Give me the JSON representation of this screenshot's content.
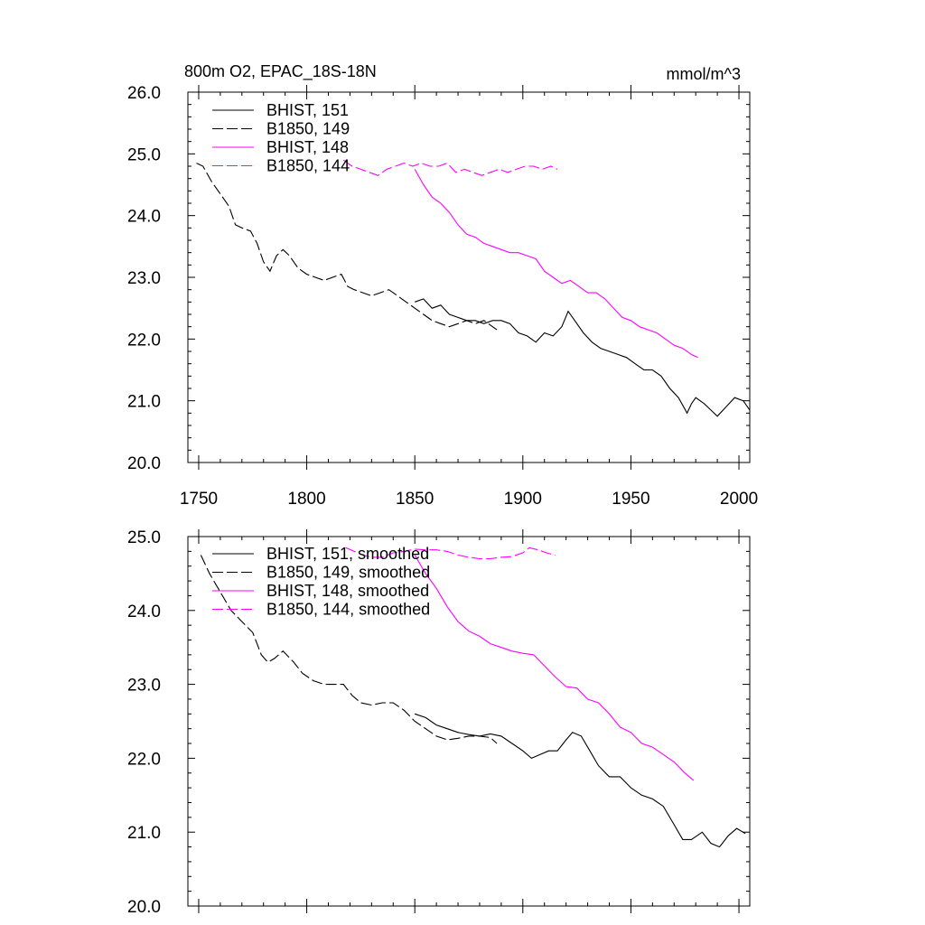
{
  "chart_data": [
    {
      "type": "line",
      "title": "800m O2, EPAC_18S-18N",
      "units": "mmol/m^3",
      "xlim": [
        1745,
        2005
      ],
      "ylim": [
        20.0,
        26.0
      ],
      "x_ticks": [
        "1750",
        "1800",
        "1850",
        "1900",
        "1950",
        "2000"
      ],
      "y_ticks": [
        "20.0",
        "21.0",
        "22.0",
        "23.0",
        "24.0",
        "25.0",
        "26.0"
      ],
      "legend": "top-left",
      "series": [
        {
          "name": "BHIST, 151",
          "color": "#000000",
          "dash": "solid",
          "points": [
            [
              1850,
              22.6
            ],
            [
              1854,
              22.65
            ],
            [
              1858,
              22.5
            ],
            [
              1862,
              22.55
            ],
            [
              1866,
              22.4
            ],
            [
              1870,
              22.35
            ],
            [
              1874,
              22.3
            ],
            [
              1878,
              22.3
            ],
            [
              1882,
              22.25
            ],
            [
              1886,
              22.3
            ],
            [
              1890,
              22.3
            ],
            [
              1894,
              22.25
            ],
            [
              1898,
              22.1
            ],
            [
              1902,
              22.05
            ],
            [
              1906,
              21.95
            ],
            [
              1910,
              22.1
            ],
            [
              1914,
              22.05
            ],
            [
              1918,
              22.2
            ],
            [
              1921,
              22.45
            ],
            [
              1924,
              22.3
            ],
            [
              1928,
              22.1
            ],
            [
              1932,
              21.95
            ],
            [
              1936,
              21.85
            ],
            [
              1940,
              21.8
            ],
            [
              1944,
              21.75
            ],
            [
              1948,
              21.7
            ],
            [
              1952,
              21.6
            ],
            [
              1956,
              21.5
            ],
            [
              1960,
              21.5
            ],
            [
              1964,
              21.4
            ],
            [
              1968,
              21.2
            ],
            [
              1972,
              21.05
            ],
            [
              1976,
              20.8
            ],
            [
              1978,
              20.95
            ],
            [
              1980,
              21.05
            ],
            [
              1984,
              20.95
            ],
            [
              1987,
              20.85
            ],
            [
              1990,
              20.75
            ],
            [
              1994,
              20.9
            ],
            [
              1998,
              21.05
            ],
            [
              2002,
              21.0
            ],
            [
              2005,
              20.85
            ]
          ]
        },
        {
          "name": "B1850, 149",
          "color": "#000000",
          "dash": "dashed",
          "points": [
            [
              1749,
              24.85
            ],
            [
              1752,
              24.8
            ],
            [
              1756,
              24.55
            ],
            [
              1760,
              24.35
            ],
            [
              1764,
              24.15
            ],
            [
              1767,
              23.85
            ],
            [
              1770,
              23.8
            ],
            [
              1774,
              23.75
            ],
            [
              1777,
              23.55
            ],
            [
              1780,
              23.25
            ],
            [
              1783,
              23.1
            ],
            [
              1786,
              23.35
            ],
            [
              1789,
              23.45
            ],
            [
              1792,
              23.35
            ],
            [
              1796,
              23.15
            ],
            [
              1800,
              23.05
            ],
            [
              1804,
              23.0
            ],
            [
              1808,
              22.95
            ],
            [
              1812,
              23.0
            ],
            [
              1816,
              23.05
            ],
            [
              1819,
              22.85
            ],
            [
              1822,
              22.8
            ],
            [
              1826,
              22.75
            ],
            [
              1830,
              22.7
            ],
            [
              1834,
              22.75
            ],
            [
              1838,
              22.8
            ],
            [
              1842,
              22.7
            ],
            [
              1846,
              22.6
            ],
            [
              1850,
              22.5
            ],
            [
              1854,
              22.4
            ],
            [
              1858,
              22.3
            ],
            [
              1862,
              22.25
            ],
            [
              1866,
              22.2
            ],
            [
              1870,
              22.25
            ],
            [
              1874,
              22.3
            ],
            [
              1878,
              22.25
            ],
            [
              1882,
              22.3
            ],
            [
              1886,
              22.2
            ],
            [
              1888,
              22.15
            ]
          ]
        },
        {
          "name": "BHIST, 148",
          "color": "#ff00ff",
          "dash": "solid",
          "points": [
            [
              1850,
              24.75
            ],
            [
              1854,
              24.5
            ],
            [
              1858,
              24.3
            ],
            [
              1862,
              24.2
            ],
            [
              1866,
              24.05
            ],
            [
              1870,
              23.85
            ],
            [
              1874,
              23.7
            ],
            [
              1878,
              23.65
            ],
            [
              1882,
              23.55
            ],
            [
              1886,
              23.5
            ],
            [
              1890,
              23.45
            ],
            [
              1894,
              23.4
            ],
            [
              1898,
              23.4
            ],
            [
              1902,
              23.35
            ],
            [
              1906,
              23.3
            ],
            [
              1910,
              23.1
            ],
            [
              1914,
              23.0
            ],
            [
              1918,
              22.9
            ],
            [
              1922,
              22.95
            ],
            [
              1926,
              22.85
            ],
            [
              1930,
              22.75
            ],
            [
              1934,
              22.75
            ],
            [
              1938,
              22.65
            ],
            [
              1942,
              22.5
            ],
            [
              1946,
              22.35
            ],
            [
              1950,
              22.3
            ],
            [
              1954,
              22.2
            ],
            [
              1958,
              22.15
            ],
            [
              1962,
              22.1
            ],
            [
              1966,
              22.0
            ],
            [
              1970,
              21.9
            ],
            [
              1974,
              21.85
            ],
            [
              1978,
              21.75
            ],
            [
              1981,
              21.7
            ]
          ]
        },
        {
          "name": "B1850, 144",
          "color": "#ff00ff",
          "dash": "dashed",
          "points": [
            [
              1817,
              24.9
            ],
            [
              1821,
              24.8
            ],
            [
              1825,
              24.75
            ],
            [
              1829,
              24.7
            ],
            [
              1833,
              24.65
            ],
            [
              1837,
              24.75
            ],
            [
              1841,
              24.8
            ],
            [
              1845,
              24.85
            ],
            [
              1849,
              24.8
            ],
            [
              1853,
              24.85
            ],
            [
              1857,
              24.8
            ],
            [
              1861,
              24.8
            ],
            [
              1865,
              24.85
            ],
            [
              1869,
              24.7
            ],
            [
              1873,
              24.75
            ],
            [
              1877,
              24.7
            ],
            [
              1881,
              24.65
            ],
            [
              1885,
              24.7
            ],
            [
              1889,
              24.75
            ],
            [
              1893,
              24.7
            ],
            [
              1897,
              24.75
            ],
            [
              1901,
              24.8
            ],
            [
              1905,
              24.8
            ],
            [
              1909,
              24.75
            ],
            [
              1913,
              24.8
            ],
            [
              1916,
              24.75
            ]
          ]
        }
      ]
    },
    {
      "type": "line",
      "title": "",
      "xlim": [
        1745,
        2005
      ],
      "ylim": [
        20.0,
        25.0
      ],
      "x_ticks": [],
      "y_ticks": [
        "20.0",
        "21.0",
        "22.0",
        "23.0",
        "24.0",
        "25.0"
      ],
      "legend": "top-left",
      "series": [
        {
          "name": "BHIST, 151, smoothed",
          "color": "#000000",
          "dash": "solid",
          "points": [
            [
              1850,
              22.6
            ],
            [
              1855,
              22.55
            ],
            [
              1860,
              22.45
            ],
            [
              1865,
              22.4
            ],
            [
              1870,
              22.35
            ],
            [
              1875,
              22.32
            ],
            [
              1880,
              22.3
            ],
            [
              1885,
              22.33
            ],
            [
              1890,
              22.3
            ],
            [
              1895,
              22.2
            ],
            [
              1900,
              22.1
            ],
            [
              1904,
              22.0
            ],
            [
              1908,
              22.05
            ],
            [
              1912,
              22.1
            ],
            [
              1916,
              22.1
            ],
            [
              1920,
              22.25
            ],
            [
              1923,
              22.35
            ],
            [
              1927,
              22.3
            ],
            [
              1931,
              22.1
            ],
            [
              1935,
              21.9
            ],
            [
              1940,
              21.75
            ],
            [
              1945,
              21.75
            ],
            [
              1950,
              21.6
            ],
            [
              1955,
              21.5
            ],
            [
              1960,
              21.45
            ],
            [
              1965,
              21.35
            ],
            [
              1970,
              21.1
            ],
            [
              1974,
              20.9
            ],
            [
              1978,
              20.9
            ],
            [
              1983,
              21.0
            ],
            [
              1987,
              20.85
            ],
            [
              1991,
              20.8
            ],
            [
              1995,
              20.95
            ],
            [
              1999,
              21.05
            ],
            [
              2003,
              20.98
            ]
          ]
        },
        {
          "name": "B1850, 149, smoothed",
          "color": "#000000",
          "dash": "dashed",
          "points": [
            [
              1751,
              24.75
            ],
            [
              1755,
              24.5
            ],
            [
              1760,
              24.25
            ],
            [
              1765,
              24.0
            ],
            [
              1770,
              23.85
            ],
            [
              1775,
              23.7
            ],
            [
              1779,
              23.4
            ],
            [
              1782,
              23.3
            ],
            [
              1785,
              23.35
            ],
            [
              1789,
              23.45
            ],
            [
              1794,
              23.3
            ],
            [
              1798,
              23.15
            ],
            [
              1803,
              23.05
            ],
            [
              1808,
              23.0
            ],
            [
              1813,
              23.0
            ],
            [
              1817,
              23.0
            ],
            [
              1821,
              22.85
            ],
            [
              1825,
              22.75
            ],
            [
              1830,
              22.72
            ],
            [
              1835,
              22.75
            ],
            [
              1840,
              22.75
            ],
            [
              1845,
              22.65
            ],
            [
              1850,
              22.5
            ],
            [
              1855,
              22.4
            ],
            [
              1860,
              22.3
            ],
            [
              1865,
              22.25
            ],
            [
              1870,
              22.27
            ],
            [
              1875,
              22.3
            ],
            [
              1880,
              22.3
            ],
            [
              1885,
              22.28
            ],
            [
              1888,
              22.2
            ]
          ]
        },
        {
          "name": "BHIST, 148, smoothed",
          "color": "#ff00ff",
          "dash": "solid",
          "points": [
            [
              1850,
              24.75
            ],
            [
              1855,
              24.5
            ],
            [
              1860,
              24.3
            ],
            [
              1865,
              24.05
            ],
            [
              1870,
              23.85
            ],
            [
              1875,
              23.72
            ],
            [
              1880,
              23.65
            ],
            [
              1885,
              23.55
            ],
            [
              1890,
              23.5
            ],
            [
              1895,
              23.45
            ],
            [
              1900,
              23.42
            ],
            [
              1905,
              23.4
            ],
            [
              1910,
              23.25
            ],
            [
              1915,
              23.1
            ],
            [
              1920,
              22.97
            ],
            [
              1925,
              22.95
            ],
            [
              1930,
              22.8
            ],
            [
              1935,
              22.75
            ],
            [
              1940,
              22.6
            ],
            [
              1945,
              22.42
            ],
            [
              1950,
              22.35
            ],
            [
              1955,
              22.2
            ],
            [
              1960,
              22.15
            ],
            [
              1965,
              22.05
            ],
            [
              1970,
              21.95
            ],
            [
              1975,
              21.8
            ],
            [
              1979,
              21.7
            ]
          ]
        },
        {
          "name": "B1850, 144, smoothed",
          "color": "#ff00ff",
          "dash": "dashed",
          "points": [
            [
              1818,
              24.85
            ],
            [
              1822,
              24.8
            ],
            [
              1826,
              24.75
            ],
            [
              1830,
              24.72
            ],
            [
              1835,
              24.72
            ],
            [
              1840,
              24.78
            ],
            [
              1845,
              24.8
            ],
            [
              1850,
              24.83
            ],
            [
              1855,
              24.82
            ],
            [
              1860,
              24.82
            ],
            [
              1865,
              24.8
            ],
            [
              1870,
              24.75
            ],
            [
              1875,
              24.72
            ],
            [
              1880,
              24.7
            ],
            [
              1885,
              24.7
            ],
            [
              1890,
              24.72
            ],
            [
              1895,
              24.73
            ],
            [
              1900,
              24.78
            ],
            [
              1903,
              24.85
            ],
            [
              1907,
              24.82
            ],
            [
              1911,
              24.78
            ],
            [
              1915,
              24.75
            ]
          ]
        }
      ]
    }
  ]
}
